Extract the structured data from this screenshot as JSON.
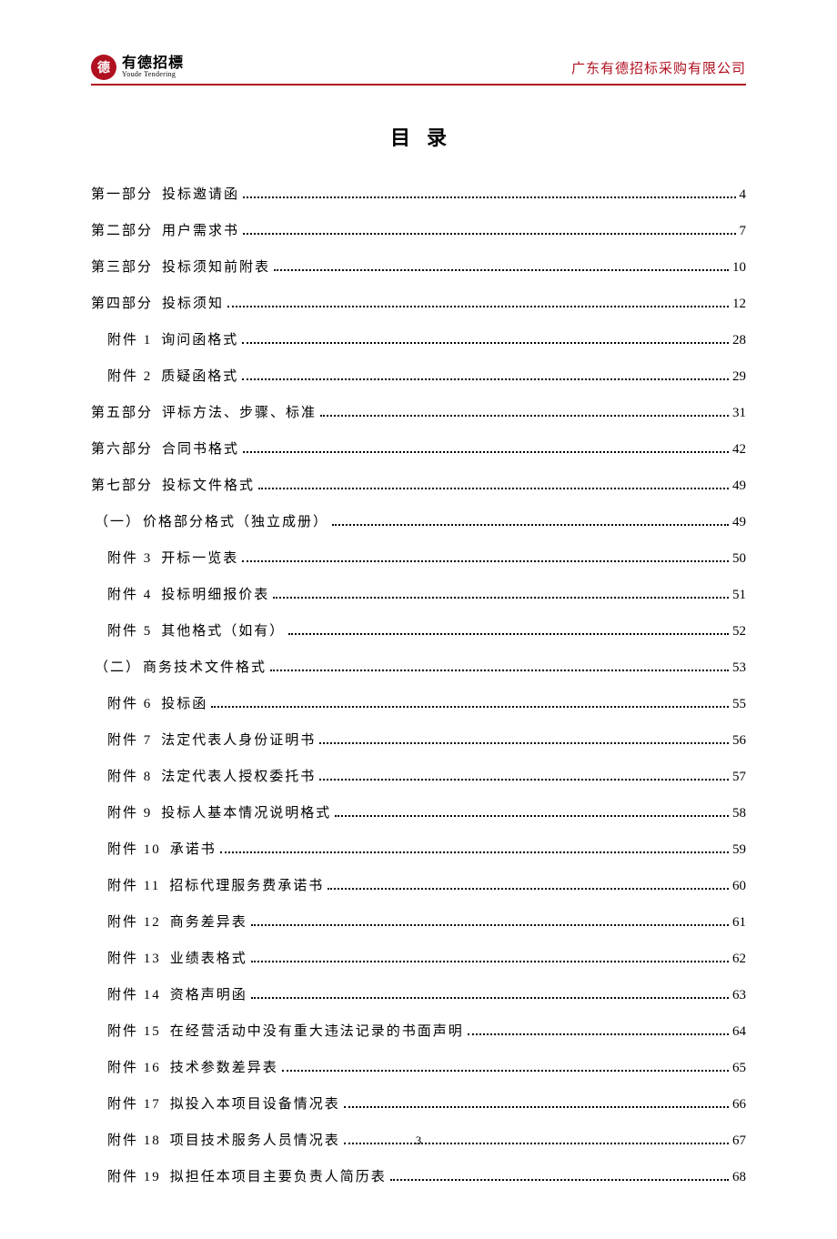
{
  "header": {
    "logo_char": "德",
    "logo_cn": "有德招標",
    "logo_en": "Youde Tendering",
    "company": "广东有德招标采购有限公司"
  },
  "title": "目录",
  "toc": [
    {
      "label": "第一部分",
      "cls": "part",
      "text": "投标邀请函",
      "page": "4"
    },
    {
      "label": "第二部分",
      "cls": "part",
      "text": "用户需求书",
      "page": "7"
    },
    {
      "label": "第三部分",
      "cls": "part",
      "text": "投标须知前附表",
      "page": "10"
    },
    {
      "label": "第四部分",
      "cls": "part",
      "text": "投标须知",
      "page": "12"
    },
    {
      "label": "附件 1",
      "cls": "att",
      "text": "询问函格式",
      "page": "28"
    },
    {
      "label": "附件 2",
      "cls": "att",
      "text": "质疑函格式",
      "page": "29"
    },
    {
      "label": "第五部分",
      "cls": "part",
      "text": "评标方法、步骤、标准",
      "page": "31"
    },
    {
      "label": "第六部分",
      "cls": "part",
      "text": "合同书格式",
      "page": "42"
    },
    {
      "label": "第七部分",
      "cls": "part",
      "text": "投标文件格式",
      "page": "49"
    },
    {
      "label": "（一）",
      "cls": "sub",
      "text": "价格部分格式（独立成册）",
      "page": "49",
      "nolabelspace": true
    },
    {
      "label": "附件 3",
      "cls": "att",
      "text": "开标一览表",
      "page": "50"
    },
    {
      "label": "附件 4",
      "cls": "att",
      "text": "投标明细报价表",
      "page": "51"
    },
    {
      "label": "附件 5",
      "cls": "att",
      "text": "其他格式（如有）",
      "page": "52"
    },
    {
      "label": "（二）",
      "cls": "sub",
      "text": "商务技术文件格式",
      "page": "53",
      "nolabelspace": true
    },
    {
      "label": "附件 6",
      "cls": "att",
      "text": "投标函",
      "page": "55"
    },
    {
      "label": "附件 7",
      "cls": "att",
      "text": "法定代表人身份证明书",
      "page": "56"
    },
    {
      "label": "附件 8",
      "cls": "att",
      "text": "法定代表人授权委托书",
      "page": "57"
    },
    {
      "label": "附件 9",
      "cls": "att",
      "text": "投标人基本情况说明格式",
      "page": "58"
    },
    {
      "label": "附件 10",
      "cls": "att",
      "text": "承诺书",
      "page": "59"
    },
    {
      "label": "附件 11",
      "cls": "att",
      "text": "招标代理服务费承诺书",
      "page": "60"
    },
    {
      "label": "附件 12",
      "cls": "att",
      "text": "商务差异表",
      "page": "61"
    },
    {
      "label": "附件 13",
      "cls": "att",
      "text": "业绩表格式",
      "page": "62"
    },
    {
      "label": "附件 14",
      "cls": "att",
      "text": "资格声明函",
      "page": "63"
    },
    {
      "label": "附件 15",
      "cls": "att",
      "text": "在经营活动中没有重大违法记录的书面声明",
      "page": "64"
    },
    {
      "label": "附件 16",
      "cls": "att",
      "text": "技术参数差异表",
      "page": "65"
    },
    {
      "label": "附件 17",
      "cls": "att",
      "text": "拟投入本项目设备情况表",
      "page": "66"
    },
    {
      "label": "附件 18",
      "cls": "att",
      "text": "项目技术服务人员情况表",
      "page": "67"
    },
    {
      "label": "附件 19",
      "cls": "att",
      "text": "拟担任本项目主要负责人简历表",
      "page": "68"
    }
  ],
  "page_number": "3",
  "colors": {
    "accent": "#b01020",
    "text": "#000000",
    "background": "#ffffff"
  }
}
